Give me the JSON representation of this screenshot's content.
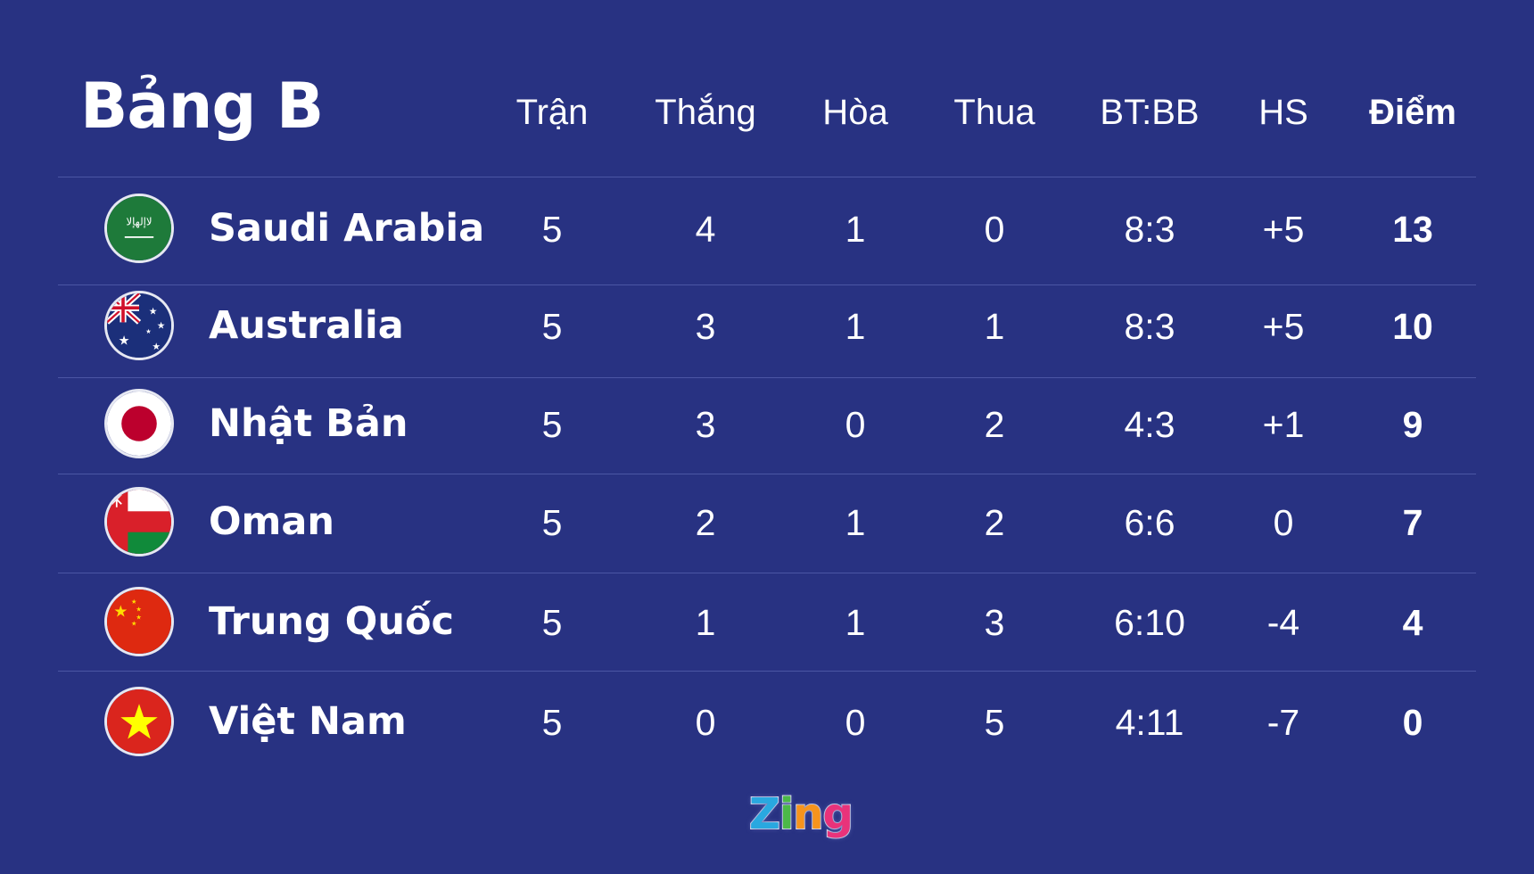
{
  "title": "Bảng B",
  "columns": [
    "Trận",
    "Thắng",
    "Hòa",
    "Thua",
    "BT:BB",
    "HS",
    "Điểm"
  ],
  "rows": [
    {
      "team": "Saudi Arabia",
      "flag": "saudi-arabia-flag-icon",
      "cells": [
        "5",
        "4",
        "1",
        "0",
        "8:3",
        "+5",
        "13"
      ]
    },
    {
      "team": "Australia",
      "flag": "australia-flag-icon",
      "cells": [
        "5",
        "3",
        "1",
        "1",
        "8:3",
        "+5",
        "10"
      ]
    },
    {
      "team": "Nhật Bản",
      "flag": "japan-flag-icon",
      "cells": [
        "5",
        "3",
        "0",
        "2",
        "4:3",
        "+1",
        "9"
      ]
    },
    {
      "team": "Oman",
      "flag": "oman-flag-icon",
      "cells": [
        "5",
        "2",
        "1",
        "2",
        "6:6",
        "0",
        "7"
      ]
    },
    {
      "team": "Trung Quốc",
      "flag": "china-flag-icon",
      "cells": [
        "5",
        "1",
        "1",
        "3",
        "6:10",
        "-4",
        "4"
      ]
    },
    {
      "team": "Việt Nam",
      "flag": "vietnam-flag-icon",
      "cells": [
        "5",
        "0",
        "0",
        "5",
        "4:11",
        "-7",
        "0"
      ]
    }
  ],
  "logo": {
    "text": "Zing",
    "letters": [
      "Z",
      "i",
      "n",
      "g"
    ],
    "colors": [
      "#29a8e0",
      "#4cb848",
      "#f7941d",
      "#e9327a"
    ]
  },
  "colors": {
    "background": "#283282",
    "divider": "#4b56a4",
    "text": "#ffffff"
  }
}
